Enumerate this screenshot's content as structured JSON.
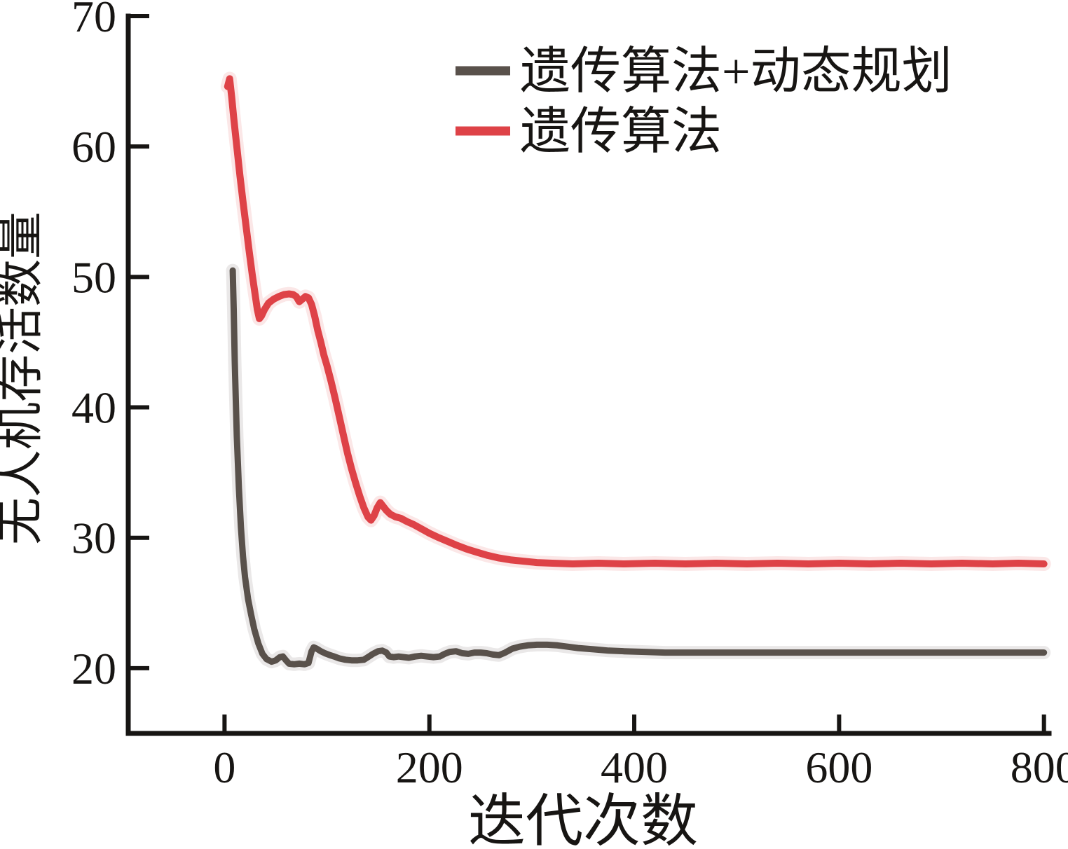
{
  "figure": {
    "background": "#ffffff",
    "axis_color": "#171513"
  },
  "legend": {
    "items": [
      {
        "label": "遗传算法+动态规划",
        "color": "#59514b"
      },
      {
        "label": "遗传算法",
        "color": "#de4247"
      }
    ]
  },
  "chart_data": {
    "type": "line",
    "title": "",
    "xlabel": "迭代次数",
    "ylabel": "无人机存活数量",
    "xlim": [
      -94,
      805
    ],
    "ylim": [
      15,
      70
    ],
    "x_ticks": [
      "0",
      "200",
      "400",
      "600",
      "800"
    ],
    "x_tick_values": [
      0,
      200,
      400,
      600,
      800
    ],
    "y_ticks": [
      "20",
      "30",
      "40",
      "50",
      "60",
      "70"
    ],
    "y_tick_values": [
      20,
      30,
      40,
      50,
      60,
      70
    ],
    "grid": false,
    "legend_position": "upper right",
    "series": [
      {
        "id": "ga-dp",
        "name": "遗传算法+动态规划",
        "color": "#59514b",
        "width": 9,
        "points": [
          [
            8,
            50.5
          ],
          [
            9,
            47.5
          ],
          [
            10,
            43.5
          ],
          [
            11,
            40.5
          ],
          [
            12,
            37.8
          ],
          [
            14,
            33.8
          ],
          [
            16,
            30.8
          ],
          [
            18,
            28.6
          ],
          [
            20,
            27.0
          ],
          [
            23,
            25.3
          ],
          [
            26,
            24.1
          ],
          [
            29,
            23.0
          ],
          [
            33,
            21.9
          ],
          [
            37,
            21.1
          ],
          [
            41,
            20.7
          ],
          [
            46,
            20.5
          ],
          [
            50,
            20.6
          ],
          [
            54,
            20.85
          ],
          [
            57,
            20.9
          ],
          [
            60,
            20.6
          ],
          [
            63,
            20.35
          ],
          [
            68,
            20.3
          ],
          [
            73,
            20.35
          ],
          [
            78,
            20.3
          ],
          [
            82,
            20.4
          ],
          [
            85,
            21.3
          ],
          [
            87,
            21.6
          ],
          [
            90,
            21.5
          ],
          [
            94,
            21.3
          ],
          [
            98,
            21.15
          ],
          [
            103,
            21.0
          ],
          [
            107,
            20.9
          ],
          [
            112,
            20.75
          ],
          [
            118,
            20.65
          ],
          [
            124,
            20.6
          ],
          [
            130,
            20.6
          ],
          [
            136,
            20.65
          ],
          [
            141,
            20.9
          ],
          [
            145,
            21.1
          ],
          [
            150,
            21.3
          ],
          [
            154,
            21.35
          ],
          [
            158,
            21.2
          ],
          [
            161,
            20.9
          ],
          [
            165,
            20.85
          ],
          [
            170,
            20.9
          ],
          [
            175,
            20.85
          ],
          [
            180,
            20.8
          ],
          [
            186,
            20.9
          ],
          [
            192,
            20.95
          ],
          [
            198,
            20.9
          ],
          [
            204,
            20.85
          ],
          [
            210,
            20.9
          ],
          [
            215,
            21.1
          ],
          [
            220,
            21.25
          ],
          [
            226,
            21.3
          ],
          [
            232,
            21.15
          ],
          [
            238,
            21.1
          ],
          [
            244,
            21.2
          ],
          [
            250,
            21.2
          ],
          [
            256,
            21.15
          ],
          [
            262,
            21.05
          ],
          [
            268,
            21.0
          ],
          [
            274,
            21.2
          ],
          [
            281,
            21.5
          ],
          [
            288,
            21.65
          ],
          [
            296,
            21.75
          ],
          [
            305,
            21.8
          ],
          [
            315,
            21.8
          ],
          [
            325,
            21.75
          ],
          [
            335,
            21.65
          ],
          [
            345,
            21.55
          ],
          [
            360,
            21.45
          ],
          [
            375,
            21.35
          ],
          [
            390,
            21.3
          ],
          [
            410,
            21.25
          ],
          [
            430,
            21.2
          ],
          [
            455,
            21.2
          ],
          [
            480,
            21.2
          ],
          [
            510,
            21.2
          ],
          [
            540,
            21.2
          ],
          [
            570,
            21.2
          ],
          [
            600,
            21.2
          ],
          [
            630,
            21.2
          ],
          [
            660,
            21.2
          ],
          [
            690,
            21.2
          ],
          [
            720,
            21.2
          ],
          [
            750,
            21.2
          ],
          [
            775,
            21.2
          ],
          [
            800,
            21.2
          ]
        ]
      },
      {
        "id": "ga",
        "name": "遗传算法",
        "color": "#de4247",
        "width": 10,
        "points": [
          [
            3,
            64.6
          ],
          [
            5,
            65.2
          ],
          [
            7,
            63.8
          ],
          [
            9,
            62.2
          ],
          [
            12,
            60.0
          ],
          [
            15,
            57.8
          ],
          [
            18,
            55.8
          ],
          [
            21,
            53.9
          ],
          [
            24,
            52.0
          ],
          [
            27,
            50.2
          ],
          [
            30,
            48.6
          ],
          [
            32,
            47.5
          ],
          [
            34,
            46.8
          ],
          [
            36,
            47.0
          ],
          [
            39,
            47.5
          ],
          [
            43,
            48.0
          ],
          [
            48,
            48.3
          ],
          [
            53,
            48.5
          ],
          [
            58,
            48.65
          ],
          [
            63,
            48.7
          ],
          [
            67,
            48.65
          ],
          [
            70,
            48.5
          ],
          [
            73,
            48.1
          ],
          [
            76,
            48.3
          ],
          [
            79,
            48.5
          ],
          [
            82,
            48.4
          ],
          [
            85,
            47.9
          ],
          [
            88,
            47.0
          ],
          [
            91,
            45.9
          ],
          [
            94,
            45.0
          ],
          [
            97,
            44.0
          ],
          [
            100,
            43.2
          ],
          [
            104,
            42.0
          ],
          [
            108,
            40.7
          ],
          [
            112,
            39.3
          ],
          [
            116,
            37.9
          ],
          [
            120,
            36.5
          ],
          [
            124,
            35.3
          ],
          [
            128,
            34.2
          ],
          [
            132,
            33.2
          ],
          [
            136,
            32.3
          ],
          [
            140,
            31.6
          ],
          [
            143,
            31.35
          ],
          [
            146,
            31.7
          ],
          [
            149,
            32.3
          ],
          [
            152,
            32.7
          ],
          [
            155,
            32.4
          ],
          [
            158,
            32.1
          ],
          [
            162,
            31.8
          ],
          [
            167,
            31.6
          ],
          [
            172,
            31.5
          ],
          [
            178,
            31.25
          ],
          [
            185,
            31.0
          ],
          [
            192,
            30.7
          ],
          [
            200,
            30.35
          ],
          [
            208,
            30.05
          ],
          [
            217,
            29.75
          ],
          [
            226,
            29.45
          ],
          [
            236,
            29.15
          ],
          [
            246,
            28.9
          ],
          [
            257,
            28.65
          ],
          [
            268,
            28.45
          ],
          [
            280,
            28.3
          ],
          [
            292,
            28.2
          ],
          [
            305,
            28.1
          ],
          [
            320,
            28.05
          ],
          [
            340,
            28.0
          ],
          [
            365,
            28.05
          ],
          [
            390,
            28.0
          ],
          [
            420,
            28.05
          ],
          [
            450,
            28.0
          ],
          [
            480,
            28.05
          ],
          [
            510,
            28.0
          ],
          [
            540,
            28.05
          ],
          [
            570,
            28.0
          ],
          [
            600,
            28.05
          ],
          [
            630,
            28.0
          ],
          [
            660,
            28.05
          ],
          [
            690,
            28.0
          ],
          [
            720,
            28.05
          ],
          [
            750,
            28.0
          ],
          [
            775,
            28.05
          ],
          [
            800,
            28.0
          ]
        ]
      }
    ]
  }
}
